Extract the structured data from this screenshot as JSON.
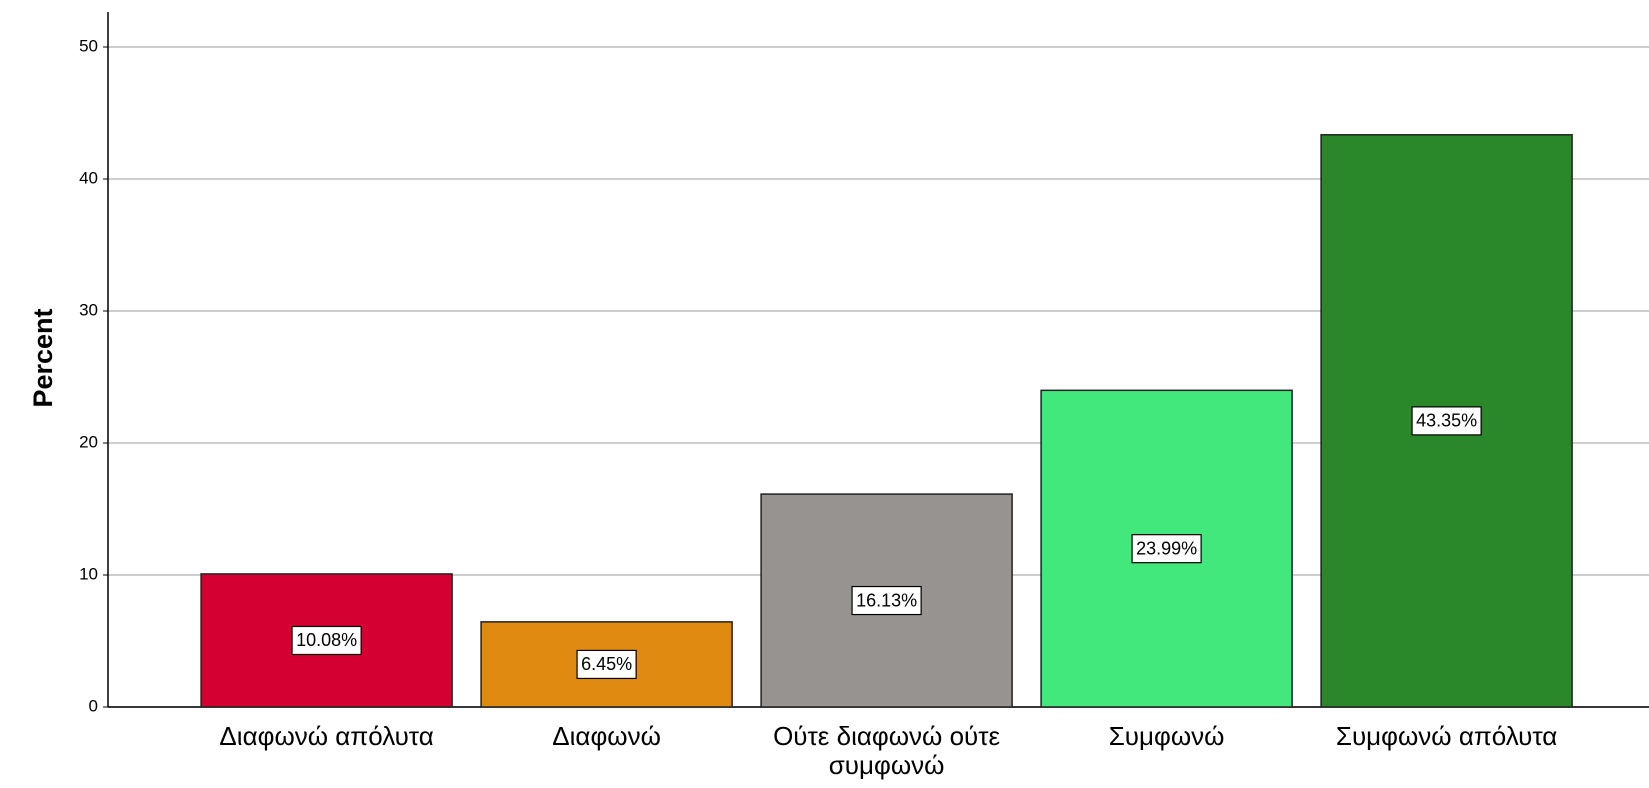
{
  "chart_data": {
    "type": "bar",
    "ylabel": "Percent",
    "categories": [
      "Διαφωνώ απόλυτα",
      "Διαφωνώ",
      "Ούτε διαφωνώ ούτε συμφωνώ",
      "Συμφωνώ",
      "Συμφωνώ απόλυτα"
    ],
    "values": [
      10.08,
      6.45,
      16.13,
      23.99,
      43.35
    ],
    "value_labels": [
      "10.08%",
      "6.45%",
      "16.13%",
      "23.99%",
      "43.35%"
    ],
    "colors": [
      "#d50032",
      "#e08a12",
      "#979391",
      "#42e87c",
      "#2a872a"
    ],
    "ylim": [
      0,
      50
    ],
    "yticks": [
      0,
      10,
      20,
      30,
      40,
      50
    ],
    "grid": true
  }
}
